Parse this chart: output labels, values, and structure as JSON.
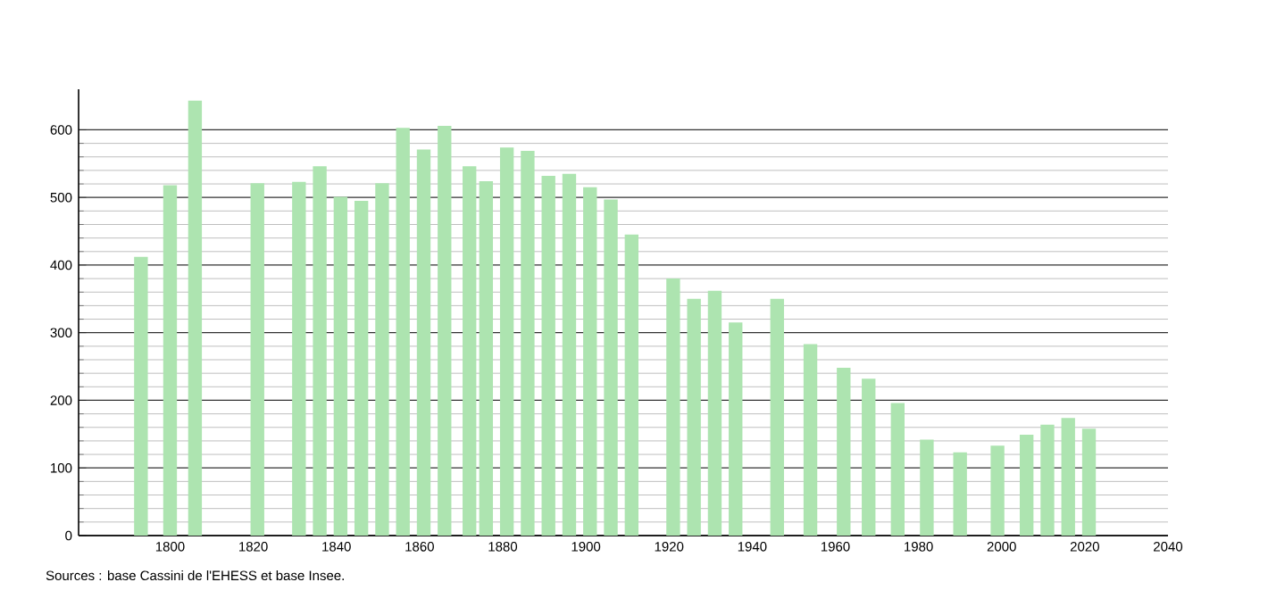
{
  "chart_data": {
    "type": "bar",
    "color": "#ade4b0",
    "x": [
      1793,
      1800,
      1806,
      1821,
      1831,
      1836,
      1841,
      1846,
      1851,
      1856,
      1861,
      1866,
      1872,
      1876,
      1881,
      1886,
      1891,
      1896,
      1901,
      1906,
      1911,
      1921,
      1926,
      1931,
      1936,
      1946,
      1954,
      1962,
      1968,
      1975,
      1982,
      1990,
      1999,
      2006,
      2011,
      2016,
      2021
    ],
    "values": [
      412,
      518,
      643,
      521,
      523,
      546,
      501,
      495,
      521,
      603,
      571,
      606,
      546,
      524,
      574,
      569,
      532,
      535,
      515,
      497,
      445,
      380,
      350,
      362,
      315,
      350,
      283,
      248,
      232,
      196,
      142,
      123,
      133,
      149,
      164,
      174,
      158
    ],
    "xlim": [
      1778,
      2040
    ],
    "xticks": [
      1800,
      1820,
      1840,
      1860,
      1880,
      1900,
      1920,
      1940,
      1960,
      1980,
      2000,
      2020,
      2040
    ],
    "ylim": [
      0,
      660
    ],
    "yticks": [
      0,
      100,
      200,
      300,
      400,
      500,
      600
    ],
    "grid": "y",
    "annotations": [
      "Sources : base Cassini de l'EHESS et base Insee."
    ]
  }
}
